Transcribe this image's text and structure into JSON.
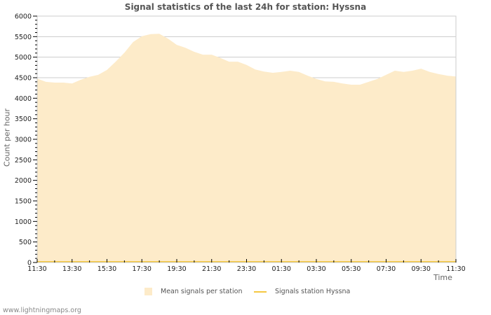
{
  "title": "Signal statistics of the last 24h for station: Hyssna",
  "footer": "www.lightningmaps.org",
  "colors": {
    "area_fill": "#fdebc9",
    "station_line": "#f5c842",
    "grid": "#cccccc",
    "frame": "#cccccc"
  },
  "chart_data": {
    "type": "area",
    "title": "Signal statistics of the last 24h for station: Hyssna",
    "xlabel": "Time",
    "ylabel": "Count per hour",
    "ylim": [
      0,
      6000
    ],
    "yticks": [
      0,
      500,
      1000,
      1500,
      2000,
      2500,
      3000,
      3500,
      4000,
      4500,
      5000,
      5500,
      6000
    ],
    "xtick_labels": [
      "11:30",
      "13:30",
      "15:30",
      "17:30",
      "19:30",
      "21:30",
      "23:30",
      "01:30",
      "03:30",
      "05:30",
      "07:30",
      "09:30",
      "11:30"
    ],
    "grid": true,
    "legend_position": "bottom",
    "x": [
      "11:30",
      "12:00",
      "12:30",
      "13:00",
      "13:30",
      "14:00",
      "14:30",
      "15:00",
      "15:30",
      "16:00",
      "16:30",
      "17:00",
      "17:30",
      "18:00",
      "18:30",
      "19:00",
      "19:30",
      "20:00",
      "20:30",
      "21:00",
      "21:30",
      "22:00",
      "22:30",
      "23:00",
      "23:30",
      "00:00",
      "00:30",
      "01:00",
      "01:30",
      "02:00",
      "02:30",
      "03:00",
      "03:30",
      "04:00",
      "04:30",
      "05:00",
      "05:30",
      "06:00",
      "06:30",
      "07:00",
      "07:30",
      "08:00",
      "08:30",
      "09:00",
      "09:30",
      "10:00",
      "10:30",
      "11:00",
      "11:30"
    ],
    "series": [
      {
        "name": "Mean signals per station",
        "style": "area",
        "values": [
          4480,
          4400,
          4380,
          4380,
          4360,
          4450,
          4520,
          4570,
          4690,
          4890,
          5110,
          5370,
          5510,
          5560,
          5570,
          5450,
          5300,
          5230,
          5130,
          5060,
          5060,
          4980,
          4890,
          4890,
          4810,
          4700,
          4650,
          4620,
          4640,
          4670,
          4640,
          4550,
          4470,
          4410,
          4400,
          4360,
          4330,
          4330,
          4400,
          4470,
          4570,
          4670,
          4640,
          4670,
          4720,
          4640,
          4590,
          4550,
          4530
        ]
      },
      {
        "name": "Signals station Hyssna",
        "style": "line",
        "values": [
          0,
          0,
          0,
          0,
          0,
          0,
          0,
          0,
          0,
          0,
          0,
          0,
          0,
          0,
          0,
          0,
          0,
          0,
          0,
          0,
          0,
          0,
          0,
          0,
          0,
          0,
          0,
          0,
          0,
          0,
          0,
          0,
          0,
          0,
          0,
          0,
          0,
          0,
          0,
          0,
          0,
          0,
          0,
          0,
          0,
          0,
          0,
          0,
          0
        ]
      }
    ]
  },
  "legend": {
    "items": [
      {
        "label": "Mean signals per station"
      },
      {
        "label": "Signals station Hyssna"
      }
    ]
  }
}
